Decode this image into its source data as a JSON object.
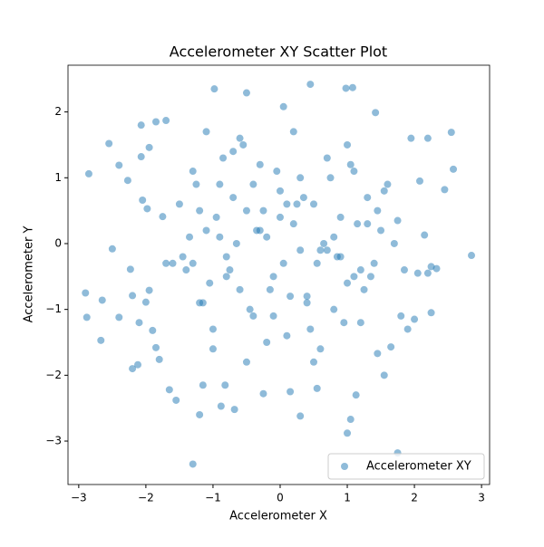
{
  "chart_data": {
    "type": "scatter",
    "title": "Accelerometer XY Scatter Plot",
    "x_label": "Accelerometer X",
    "y_label": "Accelerometer Y",
    "xlim": [
      -3.16,
      3.12
    ],
    "ylim": [
      -3.66,
      2.71
    ],
    "xticks": [
      {
        "value": -3,
        "label": "−3"
      },
      {
        "value": -2,
        "label": "−2"
      },
      {
        "value": -1,
        "label": "−1"
      },
      0,
      1,
      2,
      3
    ],
    "yticks": [
      {
        "value": -3,
        "label": "−3"
      },
      {
        "value": -2,
        "label": "−2"
      },
      {
        "value": -1,
        "label": "−1"
      },
      0,
      1,
      2
    ],
    "legend": "lower right",
    "alpha": 0.5,
    "series": [
      {
        "name": "Accelerometer XY",
        "color": "#1f77b4",
        "x": [
          -2.85,
          -2.9,
          -2.88,
          -2.65,
          -2.67,
          -2.55,
          -2.5,
          -2.4,
          -2.4,
          -2.27,
          -2.23,
          -2.2,
          -2.2,
          -2.12,
          -2.1,
          -2.07,
          -2.07,
          -2.05,
          -2.0,
          -1.98,
          -1.95,
          -1.95,
          -1.9,
          -1.85,
          -1.85,
          -1.8,
          -1.75,
          -1.7,
          -1.65,
          -1.55,
          -1.3,
          -1.2,
          -0.98,
          -0.5,
          0.05,
          0.45,
          0.98,
          1.08,
          1.42,
          1.95,
          2.2,
          2.55,
          2.58,
          2.45,
          2.85,
          2.33,
          2.25,
          2.25,
          2.05,
          1.8,
          1.9,
          1.75,
          1.0,
          1.05,
          0.3,
          1.13,
          0.55,
          -0.68,
          -0.88,
          -0.82,
          -1.15,
          -0.25,
          0.15,
          1.55,
          1.45,
          1.65,
          2.0,
          2.2,
          2.08,
          2.15,
          1.85,
          1.75,
          -1.5,
          -1.4,
          -1.3,
          -1.2,
          -1.1,
          -1.0,
          -0.9,
          -0.8,
          -0.7,
          -0.6,
          -0.5,
          -0.4,
          -0.3,
          -0.2,
          -0.1,
          0.0,
          0.1,
          0.2,
          0.3,
          0.4,
          0.5,
          0.6,
          0.7,
          0.8,
          0.9,
          1.0,
          1.1,
          1.2,
          1.3,
          1.4,
          1.5,
          -1.45,
          -1.25,
          -1.05,
          -0.85,
          -0.65,
          -0.45,
          -0.25,
          -0.05,
          0.15,
          0.35,
          0.55,
          0.75,
          0.95,
          1.15,
          1.35,
          1.55,
          -1.35,
          -1.15,
          -0.95,
          -0.75,
          -0.55,
          -0.35,
          -0.15,
          0.05,
          0.25,
          0.45,
          0.65,
          0.85,
          1.05,
          1.25,
          1.45,
          -1.6,
          -1.2,
          -0.8,
          -0.4,
          0.0,
          0.4,
          0.8,
          1.2,
          1.6,
          -1.0,
          -0.6,
          -0.2,
          0.2,
          0.6,
          1.0,
          -0.9,
          -0.3,
          0.3,
          0.9,
          -1.3,
          1.3,
          -0.5,
          0.5,
          -1.7,
          1.7,
          -0.1,
          0.1,
          -0.7,
          0.7,
          -1.1,
          1.1
        ],
        "values": [
          1.06,
          -0.75,
          -1.12,
          -0.86,
          -1.47,
          1.52,
          -0.08,
          1.19,
          -1.12,
          0.96,
          -0.39,
          -0.79,
          -1.9,
          -1.84,
          -1.2,
          1.8,
          1.32,
          0.66,
          -0.89,
          0.53,
          1.46,
          -0.71,
          -1.32,
          1.85,
          -1.58,
          -1.76,
          0.41,
          1.87,
          -2.22,
          -2.38,
          -3.35,
          -2.6,
          2.35,
          2.29,
          2.08,
          2.42,
          2.36,
          2.37,
          1.99,
          1.6,
          1.6,
          1.69,
          1.13,
          0.82,
          -0.18,
          -0.38,
          -0.35,
          -1.05,
          -0.45,
          -1.1,
          -1.3,
          -3.18,
          -2.88,
          -2.67,
          -2.62,
          -2.3,
          -2.2,
          -2.52,
          -2.47,
          -2.15,
          -2.15,
          -2.28,
          -2.25,
          -2.0,
          -1.67,
          -1.57,
          -1.15,
          -0.45,
          0.95,
          0.13,
          -0.4,
          0.35,
          0.6,
          -0.4,
          1.1,
          -0.9,
          0.2,
          -1.3,
          0.9,
          -0.2,
          1.4,
          -0.7,
          0.5,
          -1.1,
          1.2,
          0.1,
          -0.5,
          0.8,
          -1.4,
          0.3,
          1.0,
          -0.8,
          0.6,
          -0.1,
          1.3,
          -1.0,
          0.4,
          -0.6,
          1.1,
          -1.2,
          0.7,
          -0.3,
          0.2,
          -0.2,
          0.9,
          -0.6,
          1.3,
          0.0,
          -1.0,
          0.5,
          1.1,
          -0.8,
          0.7,
          -0.3,
          1.0,
          -1.2,
          0.3,
          -0.5,
          0.8,
          0.1,
          -0.9,
          0.4,
          -0.4,
          1.5,
          0.2,
          -0.7,
          -0.3,
          0.6,
          -1.3,
          0.0,
          -0.2,
          1.2,
          -0.7,
          0.5,
          -0.3,
          0.5,
          -0.5,
          0.9,
          0.4,
          -0.9,
          0.1,
          -0.4,
          0.9,
          -1.6,
          1.6,
          -1.5,
          1.7,
          -1.6,
          1.5,
          0.1,
          0.2,
          -0.1,
          -0.2,
          -0.3,
          0.3,
          -1.8,
          -1.8,
          -0.3,
          0.0,
          -1.1,
          0.6,
          0.7,
          -0.1,
          1.7,
          -0.5
        ]
      }
    ]
  }
}
